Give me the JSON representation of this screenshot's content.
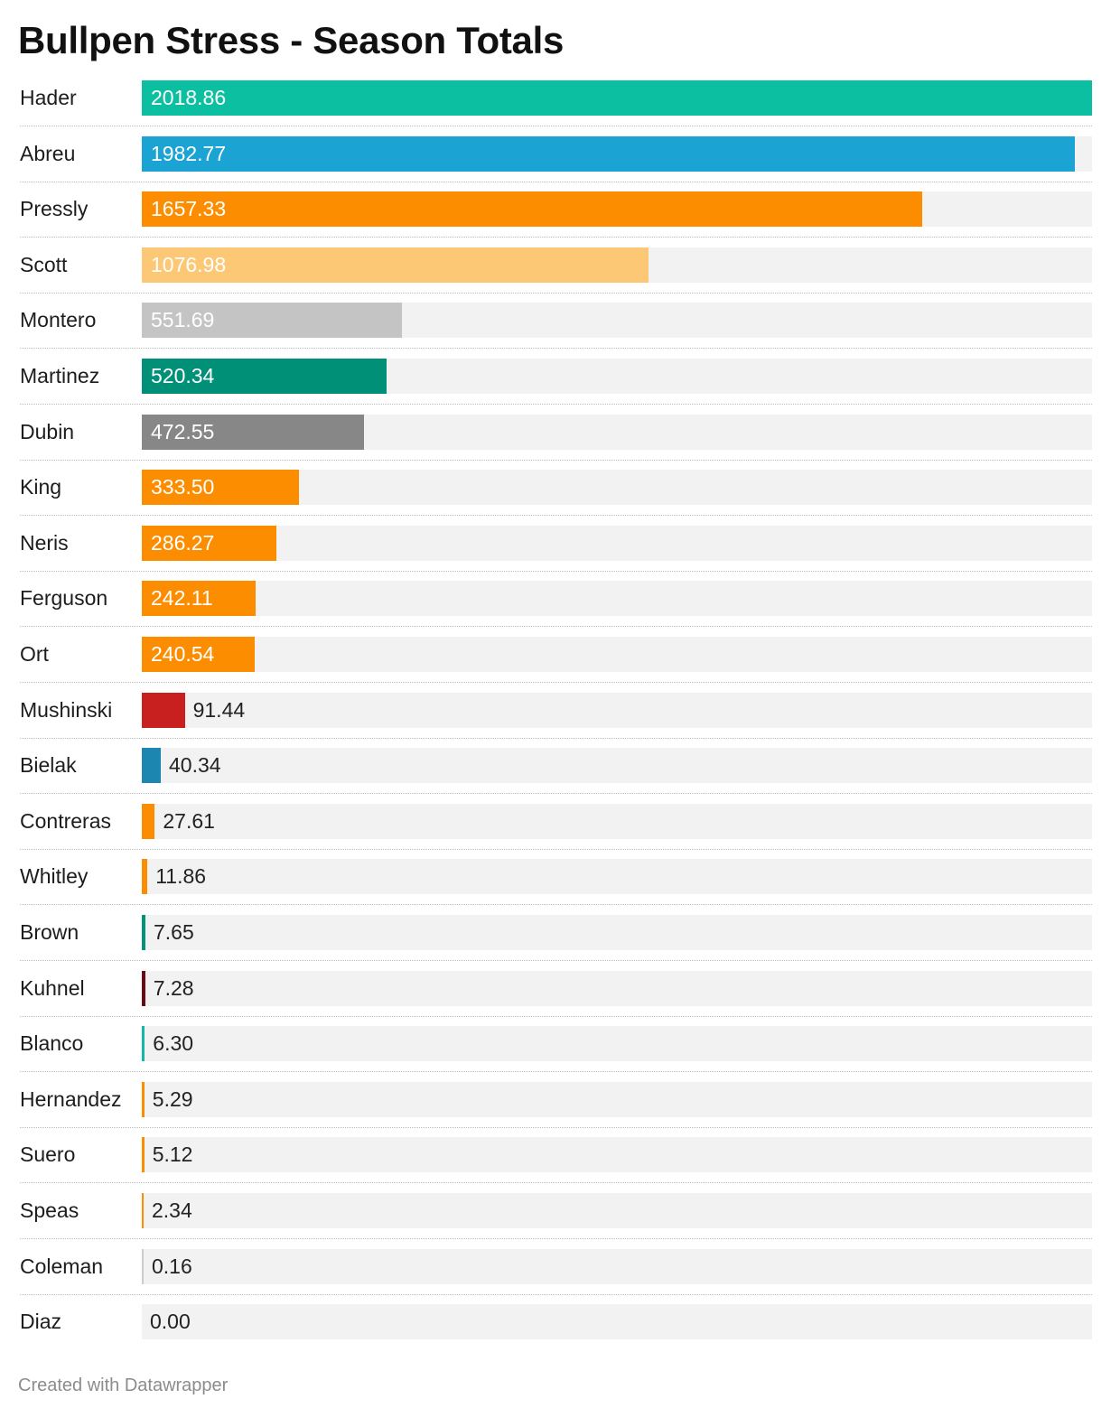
{
  "chart_data": {
    "type": "bar",
    "orientation": "horizontal",
    "title": "Bullpen Stress - Season Totals",
    "credit": "Created with Datawrapper",
    "xlim": [
      0,
      2018.86
    ],
    "grid": false,
    "legend": "none",
    "categories": [
      "Hader",
      "Abreu",
      "Pressly",
      "Scott",
      "Montero",
      "Martinez",
      "Dubin",
      "King",
      "Neris",
      "Ferguson",
      "Ort",
      "Mushinski",
      "Bielak",
      "Contreras",
      "Whitley",
      "Brown",
      "Kuhnel",
      "Blanco",
      "Hernandez",
      "Suero",
      "Speas",
      "Coleman",
      "Diaz"
    ],
    "values": [
      2018.86,
      1982.77,
      1657.33,
      1076.98,
      551.69,
      520.34,
      472.55,
      333.5,
      286.27,
      242.11,
      240.54,
      91.44,
      40.34,
      27.61,
      11.86,
      7.65,
      7.28,
      6.3,
      5.29,
      5.12,
      2.34,
      0.16,
      0.0
    ],
    "value_labels": [
      "2018.86",
      "1982.77",
      "1657.33",
      "1076.98",
      "551.69",
      "520.34",
      "472.55",
      "333.50",
      "286.27",
      "242.11",
      "240.54",
      "91.44",
      "40.34",
      "27.61",
      "11.86",
      "7.65",
      "7.28",
      "6.30",
      "5.29",
      "5.12",
      "2.34",
      "0.16",
      "0.00"
    ],
    "colors": [
      "#0dbfa1",
      "#1aa3d3",
      "#fc8d00",
      "#fdc875",
      "#c4c4c4",
      "#009078",
      "#878787",
      "#fc8d00",
      "#fc8d00",
      "#fc8d00",
      "#fc8d00",
      "#c8201f",
      "#1c86b0",
      "#fc8d00",
      "#fc8d00",
      "#00927a",
      "#6b0a12",
      "#14b8a6",
      "#fc8d00",
      "#fc8d00",
      "#fc8d00",
      "#cccccc",
      "#cccccc"
    ],
    "track_color": "#f2f2f2"
  }
}
